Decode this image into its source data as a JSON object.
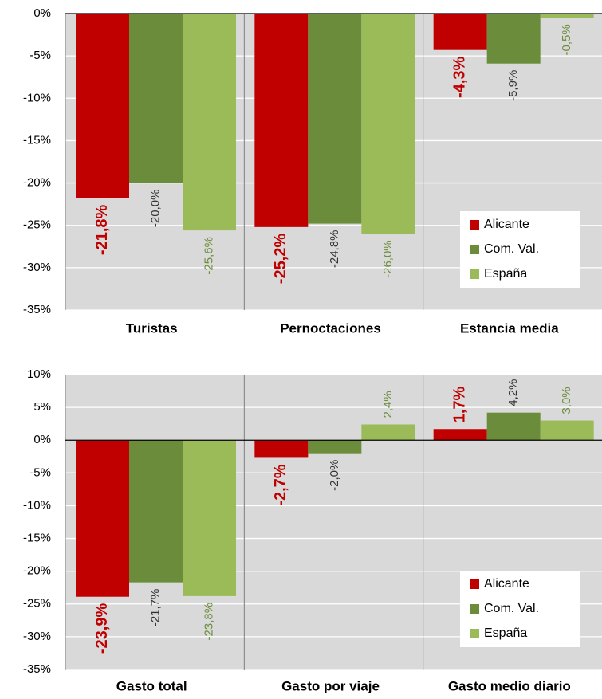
{
  "chart_data": [
    {
      "type": "bar",
      "categories": [
        "Turistas",
        "Pernoctaciones",
        "Estancia media"
      ],
      "series": [
        {
          "name": "Alicante",
          "color": "#c00000",
          "label_color": "#c00000",
          "values": [
            -21.8,
            -25.2,
            -4.3
          ],
          "value_labels": [
            "-21,8%",
            "-25,2%",
            "-4,3%"
          ]
        },
        {
          "name": "Com. Val.",
          "color": "#6b8c3a",
          "label_color": "#333333",
          "values": [
            -20.0,
            -24.8,
            -5.9
          ],
          "value_labels": [
            "-20,0%",
            "-24,8%",
            "-5,9%"
          ]
        },
        {
          "name": "España",
          "color": "#9bbb59",
          "label_color": "#6b8c3a",
          "values": [
            -25.6,
            -26.0,
            -0.5
          ],
          "value_labels": [
            "-25,6%",
            "-26,0%",
            "-0,5%"
          ]
        }
      ],
      "ylim": [
        -35,
        0
      ],
      "yticks": [
        {
          "value": -35,
          "label": "-35%"
        },
        {
          "value": -30,
          "label": "-30%"
        },
        {
          "value": -25,
          "label": "-25%"
        },
        {
          "value": -20,
          "label": "-20%"
        },
        {
          "value": -15,
          "label": "-15%"
        },
        {
          "value": -10,
          "label": "-10%"
        },
        {
          "value": -5,
          "label": "-5%"
        },
        {
          "value": 0,
          "label": "0%"
        }
      ],
      "grid": true,
      "legend": "lower right"
    },
    {
      "type": "bar",
      "categories": [
        "Gasto total",
        "Gasto por viaje",
        "Gasto medio diario"
      ],
      "series": [
        {
          "name": "Alicante",
          "color": "#c00000",
          "label_color": "#c00000",
          "values": [
            -23.9,
            -2.7,
            1.7
          ],
          "value_labels": [
            "-23,9%",
            "-2,7%",
            "1,7%"
          ]
        },
        {
          "name": "Com. Val.",
          "color": "#6b8c3a",
          "label_color": "#333333",
          "values": [
            -21.7,
            -2.0,
            4.2
          ],
          "value_labels": [
            "-21,7%",
            "-2,0%",
            "4,2%"
          ]
        },
        {
          "name": "España",
          "color": "#9bbb59",
          "label_color": "#6b8c3a",
          "values": [
            -23.8,
            2.4,
            3.0
          ],
          "value_labels": [
            "-23,8%",
            "2,4%",
            "3,0%"
          ]
        }
      ],
      "ylim": [
        -35,
        10
      ],
      "yticks": [
        {
          "value": -35,
          "label": "-35%"
        },
        {
          "value": -30,
          "label": "-30%"
        },
        {
          "value": -25,
          "label": "-25%"
        },
        {
          "value": -20,
          "label": "-20%"
        },
        {
          "value": -15,
          "label": "-15%"
        },
        {
          "value": -10,
          "label": "-10%"
        },
        {
          "value": -5,
          "label": "-5%"
        },
        {
          "value": 0,
          "label": "0%"
        },
        {
          "value": 5,
          "label": "5%"
        },
        {
          "value": 10,
          "label": "10%"
        }
      ],
      "grid": true,
      "legend": "lower right"
    }
  ]
}
